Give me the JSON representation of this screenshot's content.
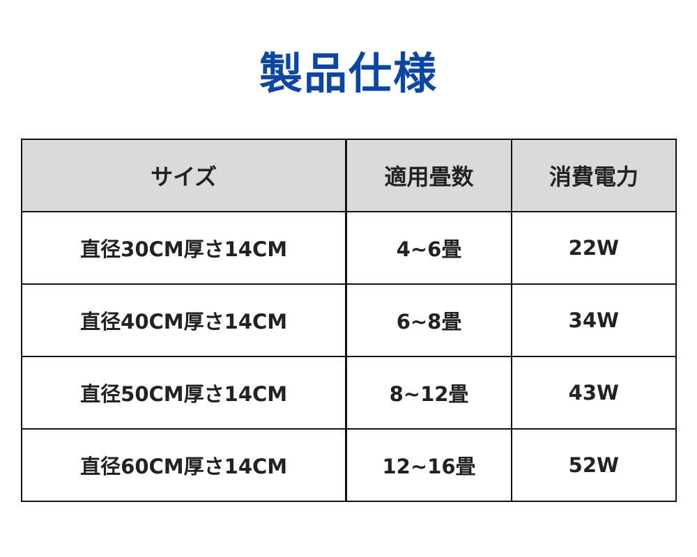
{
  "title": "製品仕様",
  "table": {
    "headers": [
      "サイズ",
      "適用畳数",
      "消費電力"
    ],
    "rows": [
      [
        "直径30CM厚さ14CM",
        "4~6畳",
        "22W"
      ],
      [
        "直径40CM厚さ14CM",
        "6~8畳",
        "34W"
      ],
      [
        "直径50CM厚さ14CM",
        "8~12畳",
        "43W"
      ],
      [
        "直径60CM厚さ14CM",
        "12~16畳",
        "52W"
      ]
    ]
  },
  "colors": {
    "title": "#0b47a1",
    "header_bg": "#dadada"
  }
}
